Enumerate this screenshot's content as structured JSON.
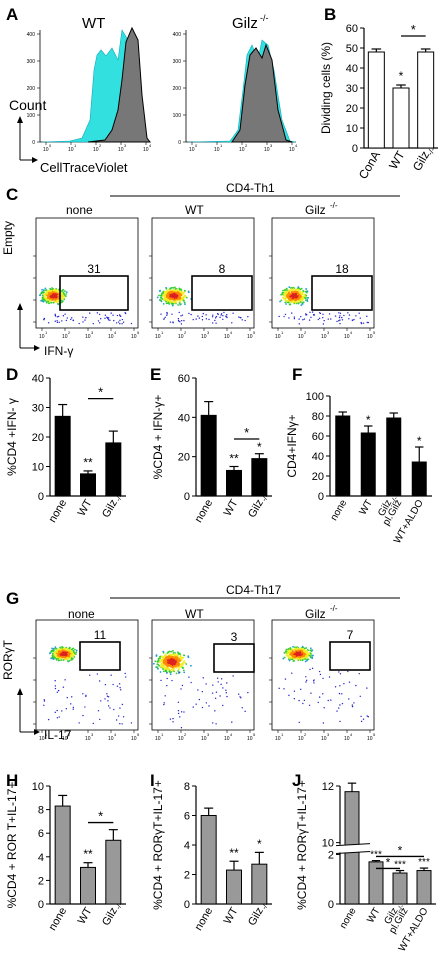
{
  "panels": {
    "A": {
      "letter": "A",
      "title_wt": "WT",
      "title_gilz": "Gilz",
      "title_gilz_sup": "-/-",
      "ylabel": "Count",
      "xlabel": "CellTraceViolet",
      "yticks": [
        "0",
        "100",
        "200",
        "300",
        "400"
      ],
      "xticks": [
        "10",
        "10",
        "10",
        "10",
        "10"
      ],
      "xtick_exps": [
        "0",
        "1",
        "2",
        "3",
        "4"
      ]
    },
    "B": {
      "letter": "B",
      "ylabel": "Dividing cells (%)",
      "yticks": [
        "0",
        "10",
        "20",
        "30",
        "40",
        "50",
        "60"
      ],
      "categories": [
        "ConA",
        "WT",
        "Gilz",
        "-/-"
      ],
      "star_top": "*",
      "star_wt": "*"
    },
    "C": {
      "letter": "C",
      "header": "CD4-Th1",
      "cols": [
        "none",
        "WT",
        "Gilz",
        "-/-"
      ],
      "gates": [
        "31",
        "8",
        "18"
      ],
      "ylabel": "Empty",
      "xlabel": "IFN-γ"
    },
    "D": {
      "letter": "D",
      "ylabel": "%CD4 +IFN- γ",
      "yticks": [
        "0",
        "10",
        "20",
        "30",
        "40"
      ],
      "cats": [
        "none",
        "WT",
        "Gilz",
        "-/-"
      ],
      "stars": [
        "**",
        "*"
      ]
    },
    "E": {
      "letter": "E",
      "ylabel": "%CD4 + IFN-γ+",
      "yticks": [
        "0",
        "20",
        "40",
        "60"
      ],
      "cats": [
        "none",
        "WT",
        "Gilz",
        "-/-"
      ],
      "stars": [
        "**",
        "*",
        "*"
      ]
    },
    "F": {
      "letter": "F",
      "ylabel": "CD4+IFNγ+",
      "yticks": [
        "0",
        "20",
        "40",
        "60",
        "80",
        "100"
      ],
      "cats": [
        "none",
        "WT",
        "Gilz",
        "-/-",
        "pl.Gilz",
        "WT+ALDO"
      ],
      "stars": [
        "*",
        "*"
      ]
    },
    "G": {
      "letter": "G",
      "header": "CD4-Th17",
      "cols": [
        "none",
        "WT",
        "Gilz",
        "-/-"
      ],
      "gates": [
        "11",
        "3",
        "7"
      ],
      "ylabel": "RORγT",
      "xlabel": "IL-17"
    },
    "H": {
      "letter": "H",
      "ylabel": "%CD4 + ROR T+IL-17+",
      "yticks": [
        "0",
        "2",
        "4",
        "6",
        "8",
        "10"
      ],
      "cats": [
        "none",
        "WT",
        "Gilz",
        "-/-"
      ],
      "stars": [
        "**",
        "*"
      ]
    },
    "I": {
      "letter": "I",
      "ylabel": "%CD4 + RORγT+IL-17+",
      "yticks": [
        "0",
        "2",
        "4",
        "6",
        "8"
      ],
      "cats": [
        "none",
        "WT",
        "Gilz",
        "-/-"
      ],
      "stars": [
        "**",
        "*"
      ]
    },
    "J": {
      "letter": "J",
      "ylabel": "%CD4 + RORγT+IL-17+",
      "yticks": [
        "0",
        "2",
        "10",
        "12"
      ],
      "cats": [
        "none",
        "WT",
        "Gilz",
        "-/-",
        "pl.Gilz",
        "WT+ALDO"
      ],
      "stars": [
        "***",
        "***",
        "***",
        "*",
        "*"
      ]
    }
  },
  "chart_data": [
    {
      "type": "bar",
      "panel": "B",
      "categories": [
        "ConA",
        "WT",
        "Gilz-/-"
      ],
      "values": [
        48,
        30,
        48
      ],
      "errors": [
        1.5,
        1.5,
        1.5
      ],
      "ylim": [
        0,
        60
      ],
      "ylabel": "Dividing cells (%)"
    },
    {
      "type": "bar",
      "panel": "D",
      "categories": [
        "none",
        "WT",
        "Gilz-/-"
      ],
      "values": [
        27,
        7.5,
        18
      ],
      "errors": [
        4,
        1,
        4
      ],
      "ylim": [
        0,
        40
      ],
      "ylabel": "%CD4 +IFN- γ"
    },
    {
      "type": "bar",
      "panel": "E",
      "categories": [
        "none",
        "WT",
        "Gilz-/-"
      ],
      "values": [
        41,
        13,
        19
      ],
      "errors": [
        7,
        2,
        2.5
      ],
      "ylim": [
        0,
        60
      ],
      "ylabel": "%CD4 + IFN-γ+"
    },
    {
      "type": "bar",
      "panel": "F",
      "categories": [
        "none",
        "WT",
        "Gilz-/- pl.Gilz",
        "WT+ALDO"
      ],
      "values": [
        80,
        63,
        78,
        34
      ],
      "errors": [
        4,
        7,
        5,
        15
      ],
      "ylim": [
        0,
        100
      ],
      "ylabel": "CD4+IFNγ+"
    },
    {
      "type": "bar",
      "panel": "H",
      "categories": [
        "none",
        "WT",
        "Gilz-/-"
      ],
      "values": [
        8.3,
        3.1,
        5.4
      ],
      "errors": [
        0.9,
        0.4,
        0.9
      ],
      "ylim": [
        0,
        10
      ],
      "ylabel": "%CD4 + ROR T+IL-17+"
    },
    {
      "type": "bar",
      "panel": "I",
      "categories": [
        "none",
        "WT",
        "Gilz-/-"
      ],
      "values": [
        6.0,
        2.3,
        2.7
      ],
      "errors": [
        0.5,
        0.6,
        0.8
      ],
      "ylim": [
        0,
        8
      ],
      "ylabel": "%CD4 + RORγT+IL-17+"
    },
    {
      "type": "bar",
      "panel": "J",
      "categories": [
        "none",
        "WT",
        "Gilz-/- pl.Gilz",
        "WT+ALDO"
      ],
      "values": [
        11.8,
        1.7,
        1.25,
        1.35
      ],
      "errors": [
        0.3,
        0.05,
        0.1,
        0.1
      ],
      "ylim": [
        0,
        12
      ],
      "ylabel": "%CD4 + RORγT+IL-17+"
    }
  ]
}
